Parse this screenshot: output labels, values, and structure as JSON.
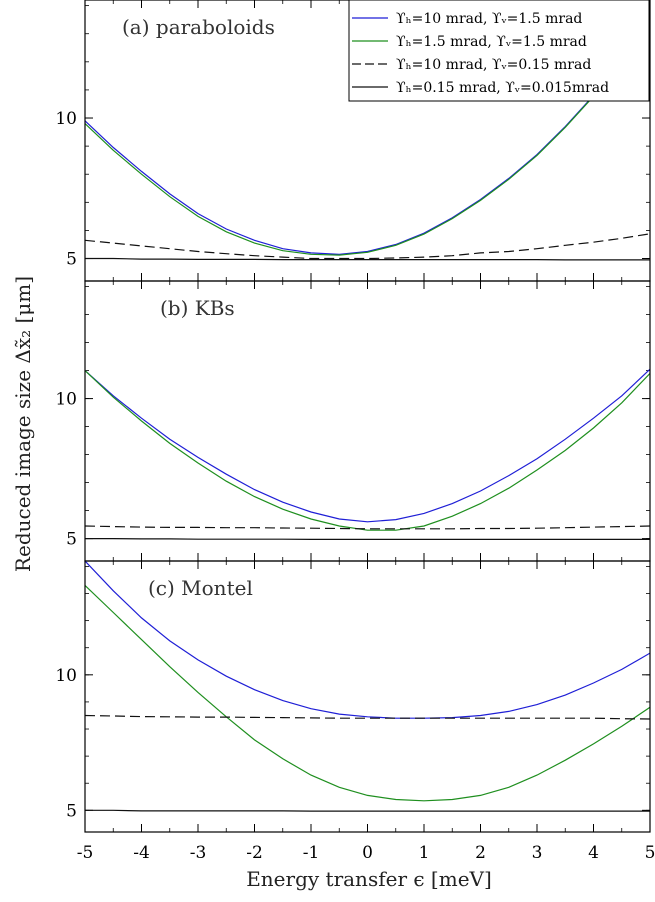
{
  "chart_data": {
    "type": "line",
    "xlabel": "Energy transfer ϵ [meV]",
    "ylabel": "Reduced image size Δx̃₂ [μm]",
    "xlim": [
      -5,
      5
    ],
    "ylim": [
      4.2,
      14.2
    ],
    "x_ticks": [
      "-5",
      "-4",
      "-3",
      "-2",
      "-1",
      "0",
      "1",
      "2",
      "3",
      "4",
      "5"
    ],
    "y_ticks": [
      "5",
      "10"
    ],
    "colors": {
      "blue": "#1f1fd6",
      "green": "#1f8f1f",
      "black": "#111111"
    },
    "legend": [
      {
        "label": "ϒₕ=10 mrad, ϒᵥ=1.5 mrad",
        "color": "#1f1fd6",
        "dash": "solid"
      },
      {
        "label": "ϒₕ=1.5 mrad, ϒᵥ=1.5 mrad",
        "color": "#1f8f1f",
        "dash": "solid"
      },
      {
        "label": "ϒₕ=10 mrad, ϒᵥ=0.15 mrad",
        "color": "#111111",
        "dash": "dashed"
      },
      {
        "label": "ϒₕ=0.15 mrad, ϒᵥ=0.015mrad",
        "color": "#111111",
        "dash": "solid"
      }
    ],
    "x": [
      -5,
      -4.5,
      -4,
      -3.5,
      -3,
      -2.5,
      -2,
      -1.5,
      -1,
      -0.5,
      0,
      0.5,
      1,
      1.5,
      2,
      2.5,
      3,
      3.5,
      4,
      4.5,
      5
    ],
    "panels": [
      {
        "label": "(a) paraboloids",
        "series": [
          {
            "color": "#1f1fd6",
            "dash": "solid",
            "values": [
              9.9,
              8.95,
              8.1,
              7.3,
              6.6,
              6.05,
              5.65,
              5.35,
              5.2,
              5.15,
              5.25,
              5.5,
              5.9,
              6.45,
              7.1,
              7.85,
              8.7,
              9.7,
              10.8,
              12.0,
              13.3
            ]
          },
          {
            "color": "#1f8f1f",
            "dash": "solid",
            "values": [
              9.8,
              8.85,
              8.0,
              7.2,
              6.5,
              5.95,
              5.55,
              5.28,
              5.15,
              5.12,
              5.22,
              5.47,
              5.87,
              6.42,
              7.07,
              7.82,
              8.67,
              9.67,
              10.77,
              11.97,
              13.25
            ]
          },
          {
            "color": "#111111",
            "dash": "dashed",
            "values": [
              5.65,
              5.55,
              5.45,
              5.35,
              5.25,
              5.17,
              5.1,
              5.05,
              5.0,
              5.0,
              5.0,
              5.02,
              5.05,
              5.1,
              5.2,
              5.25,
              5.35,
              5.47,
              5.58,
              5.72,
              5.88
            ]
          },
          {
            "color": "#111111",
            "dash": "solid",
            "values": [
              5.0,
              5.0,
              4.98,
              4.98,
              4.97,
              4.97,
              4.97,
              4.96,
              4.96,
              4.96,
              4.96,
              4.96,
              4.96,
              4.96,
              4.96,
              4.96,
              4.96,
              4.95,
              4.95,
              4.95,
              4.95
            ]
          }
        ]
      },
      {
        "label": "(b) KBs",
        "series": [
          {
            "color": "#1f1fd6",
            "dash": "solid",
            "values": [
              11.0,
              10.1,
              9.3,
              8.55,
              7.9,
              7.3,
              6.75,
              6.3,
              5.95,
              5.7,
              5.6,
              5.68,
              5.9,
              6.25,
              6.7,
              7.25,
              7.85,
              8.55,
              9.3,
              10.1,
              11.05
            ]
          },
          {
            "color": "#1f8f1f",
            "dash": "solid",
            "values": [
              11.0,
              10.05,
              9.2,
              8.4,
              7.7,
              7.05,
              6.5,
              6.05,
              5.7,
              5.45,
              5.3,
              5.3,
              5.45,
              5.8,
              6.25,
              6.8,
              7.45,
              8.15,
              8.95,
              9.85,
              10.9
            ]
          },
          {
            "color": "#111111",
            "dash": "dashed",
            "values": [
              5.45,
              5.43,
              5.41,
              5.4,
              5.4,
              5.39,
              5.39,
              5.38,
              5.37,
              5.36,
              5.35,
              5.35,
              5.35,
              5.35,
              5.36,
              5.36,
              5.37,
              5.39,
              5.41,
              5.43,
              5.45
            ]
          },
          {
            "color": "#111111",
            "dash": "solid",
            "values": [
              5.0,
              5.0,
              4.99,
              4.99,
              4.98,
              4.98,
              4.98,
              4.98,
              4.97,
              4.97,
              4.97,
              4.97,
              4.97,
              4.97,
              4.97,
              4.97,
              4.97,
              4.97,
              4.97,
              4.97,
              4.97
            ]
          }
        ]
      },
      {
        "label": "(c) Montel",
        "series": [
          {
            "color": "#1f1fd6",
            "dash": "solid",
            "values": [
              14.2,
              13.1,
              12.1,
              11.25,
              10.55,
              9.95,
              9.45,
              9.05,
              8.75,
              8.55,
              8.45,
              8.4,
              8.4,
              8.42,
              8.5,
              8.65,
              8.9,
              9.25,
              9.7,
              10.2,
              10.8
            ]
          },
          {
            "color": "#1f8f1f",
            "dash": "solid",
            "values": [
              13.3,
              12.3,
              11.3,
              10.3,
              9.35,
              8.45,
              7.6,
              6.9,
              6.3,
              5.85,
              5.55,
              5.4,
              5.35,
              5.4,
              5.55,
              5.85,
              6.3,
              6.85,
              7.45,
              8.1,
              8.8
            ]
          },
          {
            "color": "#111111",
            "dash": "dashed",
            "values": [
              8.5,
              8.48,
              8.46,
              8.45,
              8.44,
              8.44,
              8.43,
              8.42,
              8.41,
              8.4,
              8.4,
              8.4,
              8.4,
              8.4,
              8.4,
              8.4,
              8.4,
              8.4,
              8.4,
              8.38,
              8.37
            ]
          },
          {
            "color": "#111111",
            "dash": "solid",
            "values": [
              5.0,
              5.0,
              4.98,
              4.98,
              4.98,
              4.98,
              4.98,
              4.98,
              4.97,
              4.97,
              4.97,
              4.97,
              4.97,
              4.97,
              4.97,
              4.97,
              4.97,
              4.97,
              4.97,
              4.97,
              4.97
            ]
          }
        ]
      }
    ]
  }
}
